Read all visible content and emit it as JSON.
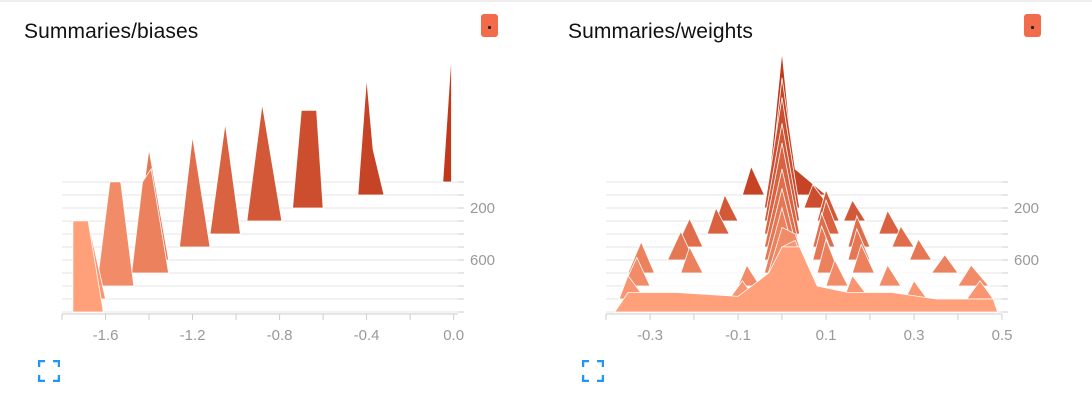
{
  "colors": {
    "accent_badge": "#f26b4b",
    "expand_icon": "#2196f3",
    "axis": "#cccccc",
    "tick_text": "#999999",
    "series_old": "#ffa07a",
    "series_new": "#c0391b"
  },
  "chart_data": [
    {
      "type": "ridgeline",
      "title": "Summaries/biases",
      "xlim": [
        -1.8,
        0.02
      ],
      "xticks": [
        -1.6,
        -1.2,
        -0.8,
        -0.4,
        0.0
      ],
      "xtick_labels": [
        "-1.6",
        "-1.2",
        "-0.8",
        "-0.4",
        "0.0"
      ],
      "ylim": [
        0,
        1000
      ],
      "yticks": [
        200,
        600
      ],
      "ytick_labels": [
        "200",
        "600"
      ],
      "steps": [
        1000,
        900,
        800,
        700,
        600,
        500,
        400,
        300,
        200,
        100,
        0
      ],
      "peak_height_units": 400,
      "distributions": [
        {
          "step": 0,
          "points": [
            [
              -1.75,
              0
            ],
            [
              -1.75,
              0.7
            ],
            [
              -1.68,
              0.7
            ],
            [
              -1.61,
              0
            ]
          ]
        },
        {
          "step": 100,
          "points": [
            [
              -1.75,
              0
            ],
            [
              -1.75,
              0.6
            ],
            [
              -1.68,
              0.6
            ],
            [
              -1.6,
              0
            ]
          ]
        },
        {
          "step": 200,
          "points": [
            [
              -1.64,
              0
            ],
            [
              -1.58,
              0.8
            ],
            [
              -1.53,
              0.8
            ],
            [
              -1.47,
              0
            ]
          ]
        },
        {
          "step": 300,
          "points": [
            [
              -1.48,
              0
            ],
            [
              -1.43,
              0.7
            ],
            [
              -1.39,
              0.8
            ],
            [
              -1.31,
              0
            ]
          ]
        },
        {
          "step": 400,
          "points": [
            [
              -1.47,
              0
            ],
            [
              -1.4,
              0.85
            ],
            [
              -1.31,
              0
            ]
          ]
        },
        {
          "step": 500,
          "points": [
            [
              -1.26,
              0
            ],
            [
              -1.2,
              0.85
            ],
            [
              -1.12,
              0
            ]
          ]
        },
        {
          "step": 600,
          "points": [
            [
              -1.12,
              0
            ],
            [
              -1.05,
              0.85
            ],
            [
              -0.98,
              0
            ]
          ]
        },
        {
          "step": 700,
          "points": [
            [
              -0.95,
              0
            ],
            [
              -0.88,
              0.9
            ],
            [
              -0.85,
              0.6
            ],
            [
              -0.79,
              0
            ]
          ]
        },
        {
          "step": 800,
          "points": [
            [
              -0.74,
              0
            ],
            [
              -0.7,
              0.75
            ],
            [
              -0.63,
              0.75
            ],
            [
              -0.6,
              0
            ]
          ]
        },
        {
          "step": 900,
          "points": [
            [
              -0.44,
              0
            ],
            [
              -0.4,
              0.9
            ],
            [
              -0.37,
              0.35
            ],
            [
              -0.32,
              0
            ]
          ]
        },
        {
          "step": 1000,
          "points": [
            [
              -0.05,
              0
            ],
            [
              -0.01,
              1.0
            ],
            [
              -0.01,
              0
            ]
          ]
        }
      ]
    },
    {
      "type": "ridgeline",
      "title": "Summaries/weights",
      "xlim": [
        -0.4,
        0.5
      ],
      "xticks": [
        -0.3,
        -0.1,
        0.1,
        0.3,
        0.5
      ],
      "xtick_labels": [
        "-0.3",
        "-0.1",
        "0.1",
        "0.3",
        "0.5"
      ],
      "ylim": [
        0,
        1000
      ],
      "yticks": [
        200,
        600
      ],
      "ytick_labels": [
        "200",
        "600"
      ],
      "steps": [
        1000,
        900,
        800,
        700,
        600,
        500,
        400,
        300,
        200,
        100,
        0
      ],
      "peak_height_units": 400,
      "distributions": [
        {
          "step": 0,
          "points": [
            [
              -0.38,
              0
            ],
            [
              -0.35,
              0.15
            ],
            [
              -0.3,
              0.15
            ],
            [
              -0.24,
              0.15
            ],
            [
              -0.1,
              0.12
            ],
            [
              -0.03,
              0.3
            ],
            [
              0.0,
              0.5
            ],
            [
              0.04,
              0.5
            ],
            [
              0.08,
              0.2
            ],
            [
              0.15,
              0.15
            ],
            [
              0.25,
              0.15
            ],
            [
              0.35,
              0.1
            ],
            [
              0.48,
              0.1
            ],
            [
              0.49,
              0
            ]
          ]
        },
        {
          "step": 100,
          "points": [
            [
              -0.37,
              0
            ],
            [
              -0.35,
              0.18
            ],
            [
              -0.31,
              0
            ],
            [
              -0.12,
              0
            ],
            [
              -0.09,
              0.14
            ],
            [
              -0.06,
              0
            ],
            [
              -0.04,
              0
            ],
            [
              0.0,
              0.4
            ],
            [
              0.03,
              0.45
            ],
            [
              0.08,
              0
            ],
            [
              0.14,
              0
            ],
            [
              0.16,
              0.18
            ],
            [
              0.2,
              0
            ],
            [
              0.28,
              0
            ],
            [
              0.3,
              0.14
            ],
            [
              0.33,
              0
            ],
            [
              0.42,
              0
            ],
            [
              0.45,
              0.14
            ],
            [
              0.48,
              0
            ]
          ]
        },
        {
          "step": 200,
          "points": [
            [
              -0.36,
              0
            ],
            [
              -0.33,
              0.22
            ],
            [
              -0.3,
              0
            ],
            [
              -0.1,
              0
            ],
            [
              -0.08,
              0.16
            ],
            [
              -0.05,
              0
            ],
            [
              -0.04,
              0
            ],
            [
              0.0,
              0.45
            ],
            [
              0.03,
              0.4
            ],
            [
              0.07,
              0
            ],
            [
              0.1,
              0
            ],
            [
              0.12,
              0.2
            ],
            [
              0.15,
              0
            ],
            [
              0.22,
              0
            ],
            [
              0.24,
              0.16
            ],
            [
              0.27,
              0
            ],
            [
              0.4,
              0
            ],
            [
              0.43,
              0.16
            ],
            [
              0.47,
              0
            ]
          ]
        },
        {
          "step": 300,
          "points": [
            [
              -0.35,
              0
            ],
            [
              -0.32,
              0.24
            ],
            [
              -0.29,
              0
            ],
            [
              -0.23,
              0
            ],
            [
              -0.21,
              0.2
            ],
            [
              -0.18,
              0
            ],
            [
              -0.04,
              0
            ],
            [
              0.0,
              0.5
            ],
            [
              0.04,
              0
            ],
            [
              0.08,
              0
            ],
            [
              0.1,
              0.26
            ],
            [
              0.13,
              0
            ],
            [
              0.16,
              0
            ],
            [
              0.18,
              0.22
            ],
            [
              0.21,
              0
            ],
            [
              0.34,
              0
            ],
            [
              0.37,
              0.14
            ],
            [
              0.4,
              0
            ]
          ]
        },
        {
          "step": 400,
          "points": [
            [
              -0.26,
              0
            ],
            [
              -0.23,
              0.22
            ],
            [
              -0.2,
              0
            ],
            [
              -0.04,
              0
            ],
            [
              0.0,
              0.55
            ],
            [
              0.04,
              0
            ],
            [
              0.07,
              0
            ],
            [
              0.09,
              0.26
            ],
            [
              0.12,
              0
            ],
            [
              0.15,
              0
            ],
            [
              0.17,
              0.24
            ],
            [
              0.2,
              0
            ],
            [
              0.29,
              0
            ],
            [
              0.31,
              0.16
            ],
            [
              0.34,
              0
            ]
          ]
        },
        {
          "step": 500,
          "points": [
            [
              -0.24,
              0
            ],
            [
              -0.21,
              0.22
            ],
            [
              -0.18,
              0
            ],
            [
              -0.04,
              0
            ],
            [
              0.0,
              0.6
            ],
            [
              0.04,
              0
            ],
            [
              0.07,
              0
            ],
            [
              0.09,
              0.26
            ],
            [
              0.12,
              0
            ],
            [
              0.15,
              0
            ],
            [
              0.17,
              0.24
            ],
            [
              0.2,
              0
            ],
            [
              0.25,
              0
            ],
            [
              0.27,
              0.16
            ],
            [
              0.3,
              0
            ]
          ]
        },
        {
          "step": 600,
          "points": [
            [
              -0.17,
              0
            ],
            [
              -0.15,
              0.2
            ],
            [
              -0.12,
              0
            ],
            [
              -0.04,
              0
            ],
            [
              0.0,
              0.7
            ],
            [
              0.04,
              0
            ],
            [
              0.08,
              0
            ],
            [
              0.1,
              0.26
            ],
            [
              0.13,
              0
            ],
            [
              0.22,
              0
            ],
            [
              0.24,
              0.18
            ],
            [
              0.27,
              0
            ]
          ]
        },
        {
          "step": 700,
          "points": [
            [
              -0.15,
              0
            ],
            [
              -0.13,
              0.2
            ],
            [
              -0.1,
              0
            ],
            [
              -0.04,
              0
            ],
            [
              0.0,
              0.75
            ],
            [
              0.04,
              0
            ],
            [
              0.08,
              0
            ],
            [
              0.1,
              0.24
            ],
            [
              0.13,
              0
            ],
            [
              0.14,
              0
            ],
            [
              0.16,
              0.16
            ],
            [
              0.19,
              0
            ]
          ]
        },
        {
          "step": 800,
          "points": [
            [
              -0.04,
              0
            ],
            [
              0.0,
              0.85
            ],
            [
              0.04,
              0
            ],
            [
              0.05,
              0
            ],
            [
              0.07,
              0.18
            ],
            [
              0.11,
              0
            ]
          ]
        },
        {
          "step": 900,
          "points": [
            [
              -0.09,
              0
            ],
            [
              -0.07,
              0.22
            ],
            [
              -0.04,
              0
            ],
            [
              -0.03,
              0
            ],
            [
              0.0,
              0.9
            ],
            [
              0.03,
              0.2
            ],
            [
              0.1,
              0
            ]
          ]
        },
        {
          "step": 1000,
          "points": [
            [
              -0.03,
              0
            ],
            [
              0.0,
              1.0
            ],
            [
              0.03,
              0
            ]
          ]
        }
      ]
    }
  ]
}
